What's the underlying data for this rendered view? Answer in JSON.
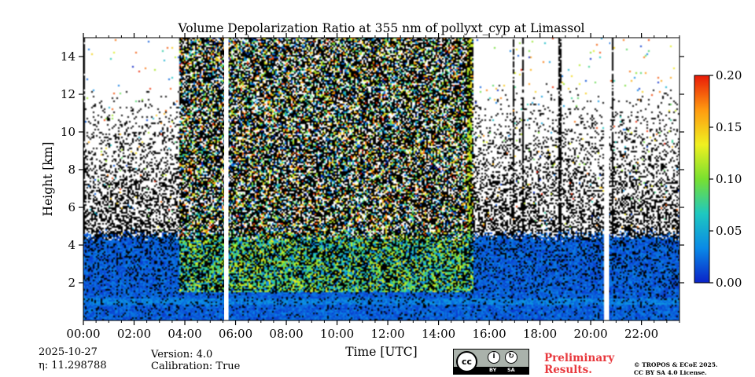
{
  "chart_data": {
    "type": "heatmap",
    "title": "Volume Depolarization Ratio at 355 nm of pollyxt_cyp at Limassol",
    "xlabel": "Time [UTC]",
    "ylabel": "Height [km]",
    "xlim": [
      0,
      23.5
    ],
    "ylim": [
      0,
      15
    ],
    "x_ticks": [
      {
        "value": 0,
        "label": "00:00"
      },
      {
        "value": 2,
        "label": "02:00"
      },
      {
        "value": 4,
        "label": "04:00"
      },
      {
        "value": 6,
        "label": "06:00"
      },
      {
        "value": 8,
        "label": "08:00"
      },
      {
        "value": 10,
        "label": "10:00"
      },
      {
        "value": 12,
        "label": "12:00"
      },
      {
        "value": 14,
        "label": "14:00"
      },
      {
        "value": 16,
        "label": "16:00"
      },
      {
        "value": 18,
        "label": "18:00"
      },
      {
        "value": 20,
        "label": "20:00"
      },
      {
        "value": 22,
        "label": "22:00"
      }
    ],
    "y_ticks": [
      {
        "value": 2,
        "label": "2"
      },
      {
        "value": 4,
        "label": "4"
      },
      {
        "value": 6,
        "label": "6"
      },
      {
        "value": 8,
        "label": "8"
      },
      {
        "value": 10,
        "label": "10"
      },
      {
        "value": 12,
        "label": "12"
      },
      {
        "value": 14,
        "label": "14"
      }
    ],
    "colorbar": {
      "min": 0.0,
      "max": 0.2,
      "ticks": [
        {
          "value": 0.0,
          "label": "0.00"
        },
        {
          "value": 0.05,
          "label": "0.05"
        },
        {
          "value": 0.1,
          "label": "0.10"
        },
        {
          "value": 0.15,
          "label": "0.15"
        },
        {
          "value": 0.2,
          "label": "0.20"
        }
      ],
      "colors": [
        "#0a22c8",
        "#0a8ae6",
        "#1ec8c0",
        "#78e030",
        "#f0f020",
        "#ff9a10",
        "#e81a08"
      ]
    },
    "data_gaps_hours": [
      [
        5.55,
        5.72
      ],
      [
        20.55,
        20.72
      ]
    ],
    "observations": {
      "low_layer_top_km": 4.5,
      "low_layer_depol_approx": 0.02,
      "noisy_band_hours": [
        3.8,
        15.4
      ],
      "high_depol_streak_hours": [
        15.1,
        15.3
      ]
    }
  },
  "footer": {
    "date": "2025-10-27",
    "eta": "η: 11.298788",
    "version": "Version: 4.0",
    "calibration": "Calibration: True",
    "preliminary_line1": "Preliminary",
    "preliminary_line2": "Results.",
    "copyright_line1": "© TROPOS & ECoE 2025.",
    "copyright_line2": "CC BY SA 4.0 License.",
    "license_badge": {
      "cc": "cc",
      "by": "BY",
      "sa": "SA"
    }
  }
}
